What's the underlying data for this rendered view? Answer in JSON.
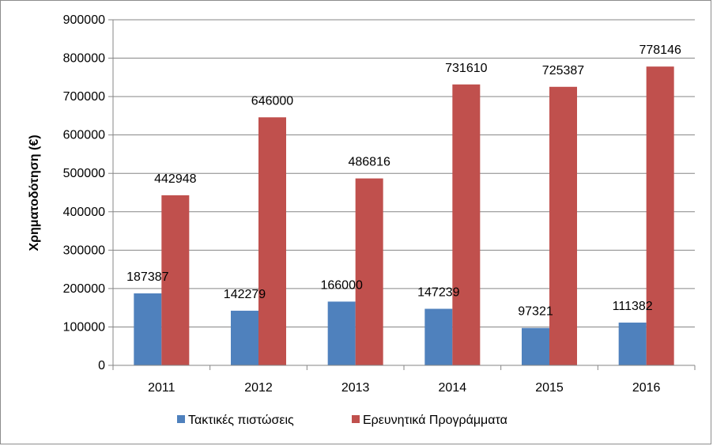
{
  "chart_data": {
    "type": "bar",
    "categories": [
      "2011",
      "2012",
      "2013",
      "2014",
      "2015",
      "2016"
    ],
    "series": [
      {
        "name": "Τακτικές πιστώσεις",
        "values": [
          187387,
          142279,
          166000,
          147239,
          97321,
          111382
        ],
        "color": "#4F81BD"
      },
      {
        "name": "Ερευνητικά Προγράμματα",
        "values": [
          442948,
          646000,
          486816,
          731610,
          725387,
          778146
        ],
        "color": "#C0504D"
      }
    ],
    "ylabel": "Χρηματοδότηση (€)",
    "xlabel": "",
    "ylim": [
      0,
      900000
    ],
    "yticks": [
      0,
      100000,
      200000,
      300000,
      400000,
      500000,
      600000,
      700000,
      800000,
      900000
    ],
    "grid": true,
    "legend": "bottom"
  }
}
